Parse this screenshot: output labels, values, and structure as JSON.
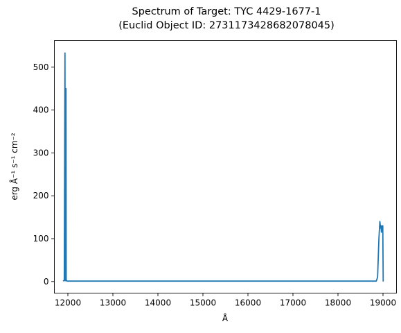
{
  "chart_data": {
    "type": "line",
    "title_line1": "Spectrum of Target: TYC 4429-1677-1",
    "title_line2": "(Euclid Object ID: 2731173428682078045)",
    "xlabel": "Å",
    "ylabel": "erg Å⁻¹ s⁻¹ cm⁻²",
    "xlim": [
      11700,
      19300
    ],
    "ylim": [
      -27,
      562
    ],
    "xticks": [
      12000,
      13000,
      14000,
      15000,
      16000,
      17000,
      18000,
      19000
    ],
    "yticks": [
      0,
      100,
      200,
      300,
      400,
      500
    ],
    "grid": false,
    "line_color": "#1f77b4",
    "series": [
      {
        "x": [
          11890,
          11920,
          11935,
          11945,
          11952,
          11958,
          11963,
          11968,
          11975,
          11982,
          11990,
          12000,
          12500,
          13000,
          14000,
          15000,
          16000,
          17000,
          18000,
          18850,
          18880,
          18910,
          18930,
          18945,
          18955,
          18965,
          18975,
          18985,
          18995,
          19005,
          19010
        ],
        "y": [
          2,
          2,
          533,
          2,
          3,
          450,
          2,
          3,
          2,
          1,
          1,
          1,
          1,
          1,
          1,
          1,
          1,
          1,
          1,
          1,
          10,
          100,
          140,
          125,
          130,
          115,
          130,
          125,
          130,
          1,
          1
        ]
      }
    ]
  }
}
